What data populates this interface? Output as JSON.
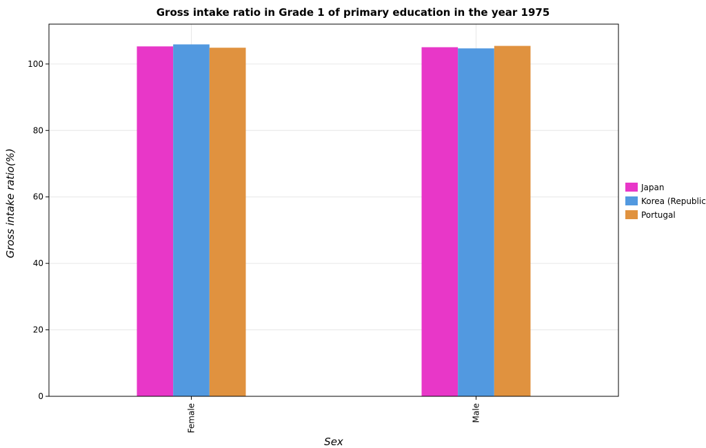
{
  "chart_data": {
    "type": "bar",
    "title": "Gross intake ratio in Grade 1 of primary education in the year 1975",
    "xlabel": "Sex",
    "ylabel": "Gross intake ratio(%)",
    "categories": [
      "Female",
      "Male"
    ],
    "series": [
      {
        "name": "Japan",
        "color": "#e837c8",
        "values": [
          105.3,
          105.05
        ]
      },
      {
        "name": "Korea (Republic)",
        "color": "#5299e0",
        "values": [
          105.9,
          104.7
        ]
      },
      {
        "name": "Portugal",
        "color": "#e0923f",
        "values": [
          104.9,
          105.45
        ]
      }
    ],
    "ylim": [
      0,
      112
    ],
    "yticks": [
      0,
      20,
      40,
      60,
      80,
      100
    ],
    "grid": true,
    "legend_position": "right"
  }
}
